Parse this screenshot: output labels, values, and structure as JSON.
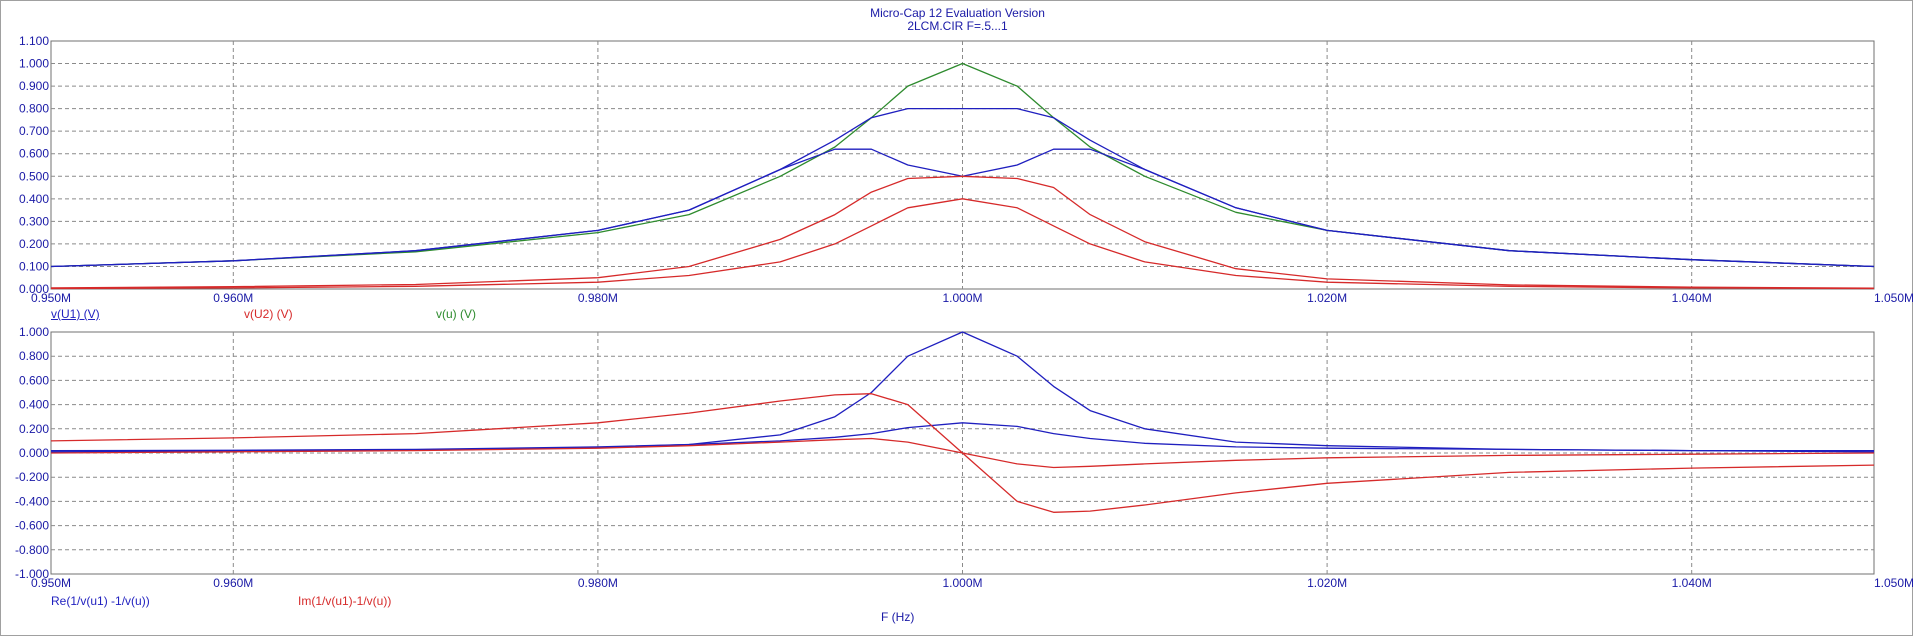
{
  "window": {
    "title": "Micro-Cap 12 Evaluation Version",
    "subtitle": "2LCM.CIR F=.5...1"
  },
  "x_axis_title": "F (Hz)",
  "colors": {
    "text": "#1a1aa6",
    "blue": "#1f1fbf",
    "red": "#d62a2a",
    "green": "#2e8b2e",
    "grid": "#8a8a8a"
  },
  "chart_data": [
    {
      "type": "line",
      "xlim": [
        0.95,
        1.05
      ],
      "ylim": [
        0,
        1.1
      ],
      "x_ticks": [
        0.95,
        0.96,
        0.98,
        1.0,
        1.02,
        1.04,
        1.05
      ],
      "x_tick_labels": [
        "0.950M",
        "0.960M",
        "0.980M",
        "1.000M",
        "1.020M",
        "1.040M",
        "1.050M"
      ],
      "y_ticks": [
        0,
        0.1,
        0.2,
        0.3,
        0.4,
        0.5,
        0.6,
        0.7,
        0.8,
        0.9,
        1.0,
        1.1
      ],
      "y_tick_labels": [
        "0.000",
        "0.100",
        "0.200",
        "0.300",
        "0.400",
        "0.500",
        "0.600",
        "0.700",
        "0.800",
        "0.900",
        "1.000",
        "1.100"
      ],
      "grid": true,
      "legend": [
        {
          "label": "v(U1) (V)",
          "color": "#1f1fbf"
        },
        {
          "label": "v(U2) (V)",
          "color": "#d62a2a"
        },
        {
          "label": "v(u) (V)",
          "color": "#2e8b2e"
        }
      ],
      "x": [
        0.95,
        0.96,
        0.97,
        0.98,
        0.985,
        0.99,
        0.993,
        0.995,
        0.997,
        1.0,
        1.003,
        1.005,
        1.007,
        1.01,
        1.015,
        1.02,
        1.03,
        1.04,
        1.05
      ],
      "series": [
        {
          "color": "#2e8b2e",
          "values": [
            0.1,
            0.125,
            0.165,
            0.25,
            0.33,
            0.5,
            0.63,
            0.76,
            0.9,
            1.0,
            0.9,
            0.76,
            0.63,
            0.5,
            0.34,
            0.26,
            0.17,
            0.13,
            0.1
          ]
        },
        {
          "color": "#1f1fbf",
          "values": [
            0.1,
            0.125,
            0.17,
            0.26,
            0.35,
            0.53,
            0.66,
            0.76,
            0.8,
            0.8,
            0.8,
            0.76,
            0.66,
            0.53,
            0.36,
            0.26,
            0.17,
            0.13,
            0.1
          ]
        },
        {
          "color": "#1f1fbf",
          "values": [
            0.1,
            0.125,
            0.17,
            0.26,
            0.35,
            0.53,
            0.62,
            0.62,
            0.55,
            0.5,
            0.55,
            0.62,
            0.62,
            0.53,
            0.36,
            0.26,
            0.17,
            0.13,
            0.1
          ]
        },
        {
          "color": "#d62a2a",
          "values": [
            0.005,
            0.01,
            0.02,
            0.05,
            0.1,
            0.22,
            0.33,
            0.43,
            0.49,
            0.5,
            0.49,
            0.45,
            0.33,
            0.21,
            0.09,
            0.045,
            0.018,
            0.008,
            0.004
          ]
        },
        {
          "color": "#d62a2a",
          "values": [
            0.002,
            0.005,
            0.012,
            0.03,
            0.06,
            0.12,
            0.2,
            0.28,
            0.36,
            0.4,
            0.36,
            0.28,
            0.2,
            0.12,
            0.06,
            0.03,
            0.012,
            0.005,
            0.002
          ]
        }
      ]
    },
    {
      "type": "line",
      "xlim": [
        0.95,
        1.05
      ],
      "ylim": [
        -1,
        1
      ],
      "x_ticks": [
        0.95,
        0.96,
        0.98,
        1.0,
        1.02,
        1.04,
        1.05
      ],
      "x_tick_labels": [
        "0.950M",
        "0.960M",
        "0.980M",
        "1.000M",
        "1.020M",
        "1.040M",
        "1.050M"
      ],
      "y_ticks": [
        -1,
        -0.8,
        -0.6,
        -0.4,
        -0.2,
        0,
        0.2,
        0.4,
        0.6,
        0.8,
        1.0
      ],
      "y_tick_labels": [
        "-1.000",
        "-0.800",
        "-0.600",
        "-0.400",
        "-0.200",
        "0.000",
        "0.200",
        "0.400",
        "0.600",
        "0.800",
        "1.000"
      ],
      "grid": true,
      "legend": [
        {
          "label": "Re(1/v(u1) -1/v(u))",
          "color": "#1f1fbf"
        },
        {
          "label": "Im(1/v(u1)-1/v(u))",
          "color": "#d62a2a"
        }
      ],
      "x": [
        0.95,
        0.96,
        0.97,
        0.98,
        0.985,
        0.99,
        0.993,
        0.995,
        0.997,
        1.0,
        1.003,
        1.005,
        1.007,
        1.01,
        1.015,
        1.02,
        1.03,
        1.04,
        1.05
      ],
      "series": [
        {
          "color": "#1f1fbf",
          "values": [
            0.01,
            0.015,
            0.025,
            0.045,
            0.07,
            0.15,
            0.3,
            0.5,
            0.8,
            1.0,
            0.8,
            0.55,
            0.35,
            0.2,
            0.09,
            0.06,
            0.03,
            0.02,
            0.01
          ]
        },
        {
          "color": "#1f1fbf",
          "values": [
            0.02,
            0.022,
            0.03,
            0.05,
            0.07,
            0.1,
            0.13,
            0.16,
            0.21,
            0.25,
            0.22,
            0.16,
            0.12,
            0.08,
            0.05,
            0.04,
            0.03,
            0.02,
            0.02
          ]
        },
        {
          "color": "#d62a2a",
          "values": [
            0.1,
            0.125,
            0.16,
            0.25,
            0.33,
            0.43,
            0.48,
            0.49,
            0.4,
            0.0,
            -0.4,
            -0.49,
            -0.48,
            -0.43,
            -0.33,
            -0.25,
            -0.16,
            -0.125,
            -0.1
          ]
        },
        {
          "color": "#d62a2a",
          "values": [
            0.0,
            0.01,
            0.02,
            0.04,
            0.06,
            0.09,
            0.11,
            0.12,
            0.09,
            0.0,
            -0.09,
            -0.12,
            -0.11,
            -0.09,
            -0.06,
            -0.04,
            -0.02,
            -0.01,
            0.0
          ]
        }
      ]
    }
  ]
}
